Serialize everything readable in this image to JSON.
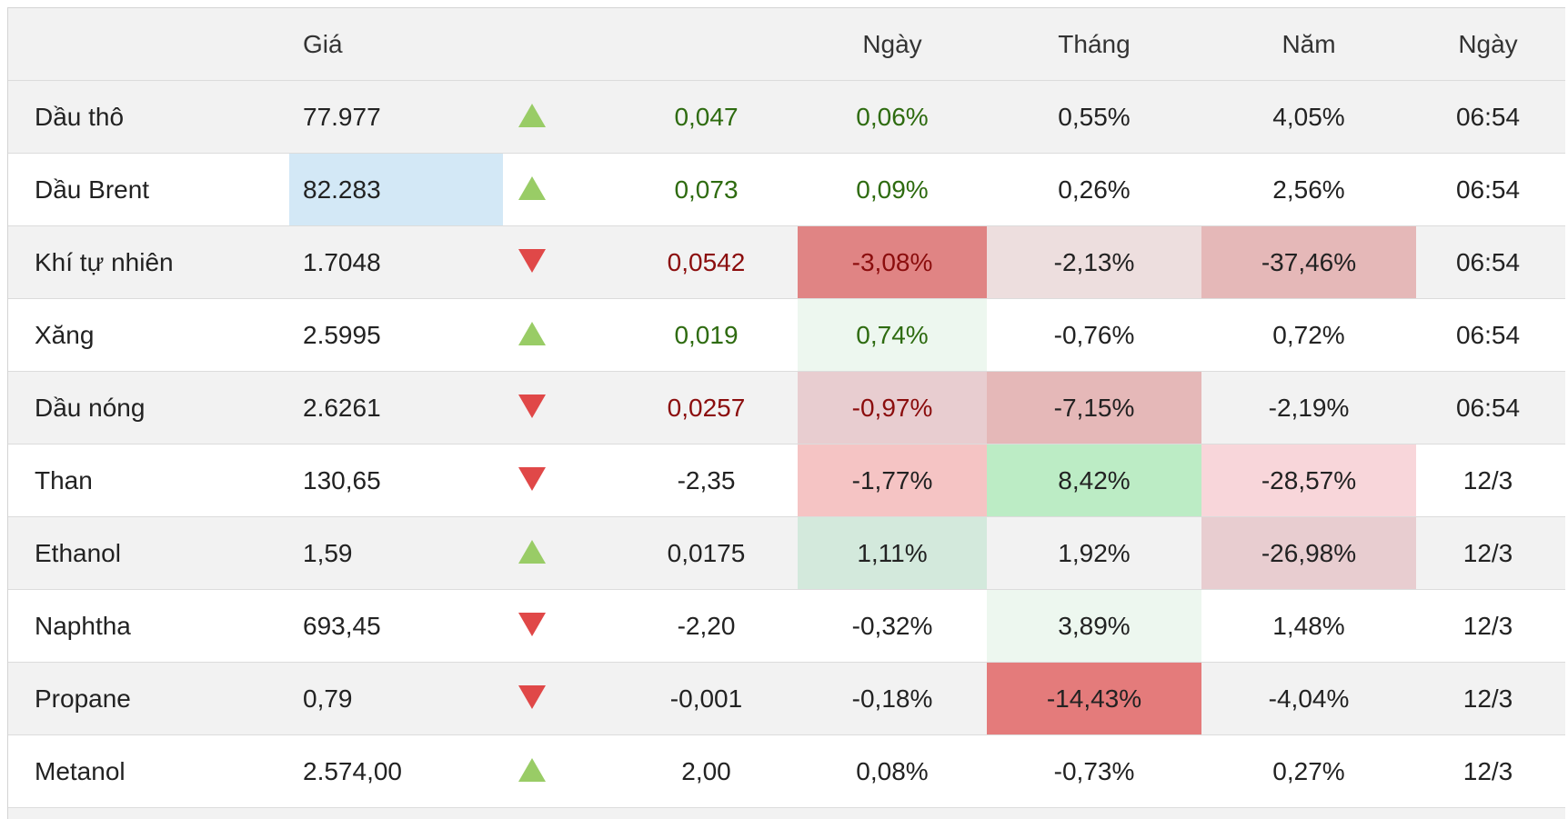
{
  "header": {
    "name": "",
    "price": "Giá",
    "arrow": "",
    "change": "",
    "day": "Ngày",
    "month": "Tháng",
    "year": "Năm",
    "time": "Ngày"
  },
  "rows": [
    {
      "name": "Dầu thô",
      "price": "77.977",
      "direction": "up",
      "change": "0,047",
      "day": "0,06%",
      "month": "0,55%",
      "year": "4,05%",
      "time": "06:54"
    },
    {
      "name": "Dầu Brent",
      "price": "82.283",
      "direction": "up",
      "change": "0,073",
      "day": "0,09%",
      "month": "0,26%",
      "year": "2,56%",
      "time": "06:54"
    },
    {
      "name": "Khí tự nhiên",
      "price": "1.7048",
      "direction": "down",
      "change": "0,0542",
      "day": "-3,08%",
      "month": "-2,13%",
      "year": "-37,46%",
      "time": "06:54"
    },
    {
      "name": "Xăng",
      "price": "2.5995",
      "direction": "up",
      "change": "0,019",
      "day": "0,74%",
      "month": "-0,76%",
      "year": "0,72%",
      "time": "06:54"
    },
    {
      "name": "Dầu nóng",
      "price": "2.6261",
      "direction": "down",
      "change": "0,0257",
      "day": "-0,97%",
      "month": "-7,15%",
      "year": "-2,19%",
      "time": "06:54"
    },
    {
      "name": "Than",
      "price": "130,65",
      "direction": "down",
      "change": "-2,35",
      "day": "-1,77%",
      "month": "8,42%",
      "year": "-28,57%",
      "time": "12/3"
    },
    {
      "name": "Ethanol",
      "price": "1,59",
      "direction": "up",
      "change": "0,0175",
      "day": "1,11%",
      "month": "1,92%",
      "year": "-26,98%",
      "time": "12/3"
    },
    {
      "name": "Naphtha",
      "price": "693,45",
      "direction": "down",
      "change": "-2,20",
      "day": "-0,32%",
      "month": "3,89%",
      "year": "1,48%",
      "time": "12/3"
    },
    {
      "name": "Propane",
      "price": "0,79",
      "direction": "down",
      "change": "-0,001",
      "day": "-0,18%",
      "month": "-14,43%",
      "year": "-4,04%",
      "time": "12/3"
    },
    {
      "name": "Metanol",
      "price": "2.574,00",
      "direction": "up",
      "change": "2,00",
      "day": "0,08%",
      "month": "-0,73%",
      "year": "0,27%",
      "time": "12/3"
    }
  ],
  "colors": {
    "highlight_price": "#d3e8f6",
    "heat_strong_neg": "#e08484",
    "heat_mid_neg": "#e5b8b8",
    "heat_light_neg": "#eddede",
    "heat_soft_neg": "#f5c4c4",
    "heat_pale_neg": "#f8d6da",
    "heat_alt_neg": "#e8cdd0",
    "heat_red": "#e47b7b",
    "heat_strong_pos": "#bcecc5",
    "heat_mid_pos": "#d3e9dc",
    "heat_light_pos": "#edf7ef",
    "up_arrow": "#99cc66",
    "down_arrow": "#e04848",
    "text_pos": "#2e6b10",
    "text_neg": "#8b0d0d"
  }
}
